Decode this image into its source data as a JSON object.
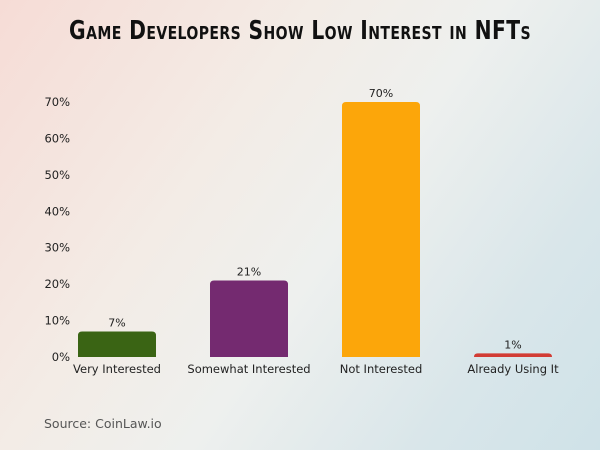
{
  "chart_data": {
    "type": "bar",
    "title": "Game Developers Show Low Interest in NFTs",
    "categories": [
      "Very Interested",
      "Somewhat Interested",
      "Not Interested",
      "Already Using It"
    ],
    "values": [
      7,
      21,
      70,
      1
    ],
    "data_labels": [
      "7%",
      "21%",
      "70%",
      "1%"
    ],
    "colors": [
      "#3a6414",
      "#742a70",
      "#fca60a",
      "#d23c34"
    ],
    "yticks": [
      "0%",
      "10%",
      "20%",
      "30%",
      "40%",
      "50%",
      "60%",
      "70%"
    ],
    "ylim": [
      0,
      70
    ],
    "grid": false,
    "xlabel": "",
    "ylabel": "",
    "source": "Source: CoinLaw.io"
  }
}
